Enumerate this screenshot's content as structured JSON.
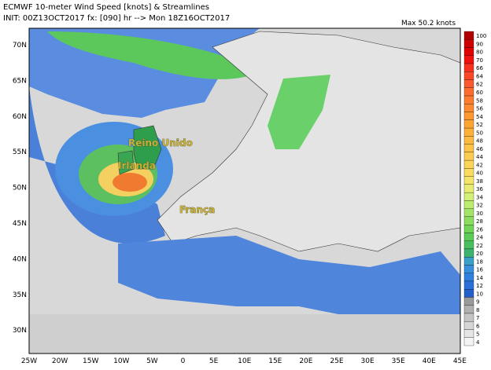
{
  "header": {
    "title": "ECMWF 10-meter Wind Speed [knots] & Streamlines",
    "init": "INIT: 00Z13OCT2017 fx: [090] hr --> Mon 18Z16OCT2017",
    "max": "Max 50.2 knots"
  },
  "map": {
    "lat_labels": [
      "70N",
      "65N",
      "60N",
      "55N",
      "50N",
      "45N",
      "40N",
      "35N",
      "30N"
    ],
    "lon_labels": [
      "25W",
      "20W",
      "15W",
      "10W",
      "5W",
      "0",
      "5E",
      "10E",
      "15E",
      "20E",
      "25E",
      "30E",
      "35E",
      "40E",
      "45E"
    ],
    "places": [
      "Reino Unido",
      "Irlanda",
      "França"
    ]
  },
  "colorbar": {
    "labels": [
      "100",
      "90",
      "80",
      "70",
      "66",
      "64",
      "62",
      "60",
      "58",
      "56",
      "54",
      "52",
      "50",
      "48",
      "46",
      "44",
      "42",
      "40",
      "38",
      "36",
      "34",
      "32",
      "30",
      "28",
      "26",
      "24",
      "22",
      "20",
      "18",
      "16",
      "14",
      "12",
      "10",
      "9",
      "8",
      "7",
      "6",
      "5",
      "4"
    ],
    "colors": [
      "#b00000",
      "#cc0000",
      "#e00000",
      "#f01010",
      "#f83020",
      "#fa4828",
      "#fb5a30",
      "#fc6c30",
      "#fd7c30",
      "#fd8a30",
      "#fe9830",
      "#fea430",
      "#feb038",
      "#fdba40",
      "#fcc448",
      "#fccc50",
      "#fcd458",
      "#fcdc60",
      "#f4e468",
      "#e8ec70",
      "#d4f078",
      "#bcec70",
      "#a4e468",
      "#8cdc60",
      "#74d458",
      "#5ccc58",
      "#48c060",
      "#3cb46c",
      "#3aa0c8",
      "#3890dc",
      "#3080e0",
      "#2a70d8",
      "#2460cc",
      "#9a9a9a",
      "#b0b0b0",
      "#c4c4c4",
      "#d6d6d6",
      "#e6e6e6",
      "#f4f4f4"
    ]
  }
}
